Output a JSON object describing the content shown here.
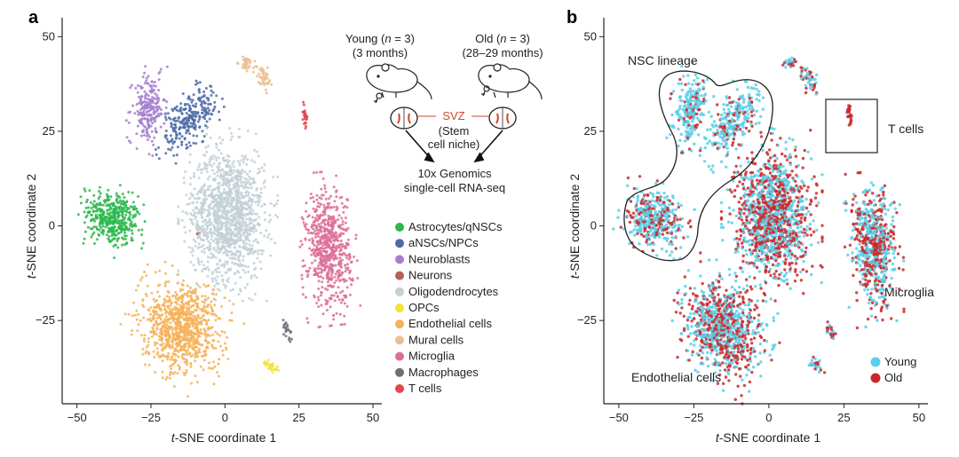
{
  "chart_data": [
    {
      "panel": "a",
      "type": "scatter",
      "xlabel_prefix": "t",
      "xlabel": "-SNE coordinate 1",
      "ylabel_prefix": "t",
      "ylabel": "-SNE coordinate 2",
      "xlim": [
        -55,
        53
      ],
      "ylim": [
        -47,
        55
      ],
      "xticks": [
        -50,
        -25,
        0,
        25,
        50
      ],
      "yticks": [
        -25,
        0,
        25,
        50
      ],
      "xtick_labels": [
        "−50",
        "−25",
        "0",
        "25",
        "50"
      ],
      "ytick_labels": [
        "−25",
        "0",
        "25",
        "50"
      ],
      "legend": [
        {
          "label": "Astrocytes/qNSCs",
          "color": "#2db84d"
        },
        {
          "label": "aNSCs/NPCs",
          "color": "#4e6aa8"
        },
        {
          "label": "Neuroblasts",
          "color": "#a47fcf"
        },
        {
          "label": "Neurons",
          "color": "#b5605e"
        },
        {
          "label": "Oligodendrocytes",
          "color": "#c3d0d6"
        },
        {
          "label": "OPCs",
          "color": "#f3e23a"
        },
        {
          "label": "Endothelial cells",
          "color": "#f6b35a"
        },
        {
          "label": "Mural cells",
          "color": "#e9c08e"
        },
        {
          "label": "Microglia",
          "color": "#dd6f96"
        },
        {
          "label": "Macrophages",
          "color": "#6f6f78"
        },
        {
          "label": "T cells",
          "color": "#e5444d"
        }
      ],
      "clusters": [
        {
          "type": "Astrocytes/qNSCs",
          "cx": -38,
          "cy": 2,
          "rx": 10,
          "ry": 8,
          "rot": -20,
          "n": 420
        },
        {
          "type": "aNSCs/NPCs",
          "cx": -12,
          "cy": 28,
          "rx": 6,
          "ry": 12,
          "rot": -45,
          "n": 260
        },
        {
          "type": "Neuroblasts",
          "cx": -26,
          "cy": 31,
          "rx": 6,
          "ry": 10,
          "rot": -10,
          "n": 220
        },
        {
          "type": "Neurons",
          "cx": -9,
          "cy": -2,
          "rx": 0.5,
          "ry": 1.3,
          "rot": 0,
          "n": 6
        },
        {
          "type": "Oligodendrocytes",
          "cx": 1,
          "cy": 3,
          "rx": 14,
          "ry": 19,
          "rot": 0,
          "n": 1300
        },
        {
          "type": "OPCs",
          "cx": 15.5,
          "cy": -37,
          "rx": 3,
          "ry": 1.5,
          "rot": -25,
          "n": 28
        },
        {
          "type": "Endothelial cells",
          "cx": -15,
          "cy": -27,
          "rx": 15,
          "ry": 12,
          "rot": -30,
          "n": 900
        },
        {
          "type": "Mural cells",
          "cx": 7,
          "cy": 43,
          "rx": 2.5,
          "ry": 1.8,
          "rot": 0,
          "n": 30
        },
        {
          "type": "Mural cells",
          "cx": 13,
          "cy": 39,
          "rx": 2.5,
          "ry": 4.5,
          "rot": 30,
          "n": 45
        },
        {
          "type": "Microglia",
          "cx": 35,
          "cy": -6,
          "rx": 8,
          "ry": 17,
          "rot": 5,
          "n": 650
        },
        {
          "type": "Macrophages",
          "cx": 21,
          "cy": -28,
          "rx": 1.3,
          "ry": 3.5,
          "rot": 25,
          "n": 22
        },
        {
          "type": "T cells",
          "cx": 27,
          "cy": 29,
          "rx": 0.8,
          "ry": 3.5,
          "rot": 10,
          "n": 25
        }
      ]
    },
    {
      "panel": "b",
      "type": "scatter",
      "xlabel_prefix": "t",
      "xlabel": "-SNE coordinate 1",
      "ylabel_prefix": "t",
      "ylabel": "-SNE coordinate 2",
      "xlim": [
        -55,
        53
      ],
      "ylim": [
        -47,
        55
      ],
      "xticks": [
        -50,
        -25,
        0,
        25,
        50
      ],
      "yticks": [
        -25,
        0,
        25,
        50
      ],
      "xtick_labels": [
        "−50",
        "−25",
        "0",
        "25",
        "50"
      ],
      "ytick_labels": [
        "−25",
        "0",
        "25",
        "50"
      ],
      "legend": [
        {
          "label": "Young",
          "color": "#5bcfe9"
        },
        {
          "label": "Old",
          "color": "#c9292b"
        }
      ],
      "annotations": {
        "nsc_lineage": "NSC lineage",
        "t_cells": "T cells",
        "microglia": "Microglia",
        "endothelial": "Endothelial cells"
      },
      "clusters": [
        {
          "cx": -38,
          "cy": 2,
          "rx": 10,
          "ry": 8,
          "rot": -20,
          "n": 420,
          "young_frac": 0.7
        },
        {
          "cx": -12,
          "cy": 28,
          "rx": 6,
          "ry": 12,
          "rot": -45,
          "n": 260,
          "young_frac": 0.75
        },
        {
          "cx": -26,
          "cy": 31,
          "rx": 6,
          "ry": 10,
          "rot": -10,
          "n": 220,
          "young_frac": 0.8
        },
        {
          "cx": 1,
          "cy": 3,
          "rx": 14,
          "ry": 19,
          "rot": 0,
          "n": 1300,
          "young_frac": 0.45
        },
        {
          "cx": -15,
          "cy": -27,
          "rx": 15,
          "ry": 12,
          "rot": -30,
          "n": 900,
          "young_frac": 0.55
        },
        {
          "cx": 7,
          "cy": 43,
          "rx": 2.5,
          "ry": 1.8,
          "rot": 0,
          "n": 30,
          "young_frac": 0.6
        },
        {
          "cx": 13,
          "cy": 39,
          "rx": 2.5,
          "ry": 4.5,
          "rot": 30,
          "n": 45,
          "young_frac": 0.5
        },
        {
          "cx": 35,
          "cy": -6,
          "rx": 8,
          "ry": 17,
          "rot": 5,
          "n": 650,
          "young_frac": 0.5
        },
        {
          "cx": 21,
          "cy": -28,
          "rx": 1.3,
          "ry": 3.5,
          "rot": 25,
          "n": 22,
          "young_frac": 0.5
        },
        {
          "cx": 27,
          "cy": 29,
          "rx": 0.8,
          "ry": 3.5,
          "rot": 10,
          "n": 25,
          "young_frac": 0.0
        },
        {
          "cx": 15.5,
          "cy": -37,
          "rx": 3,
          "ry": 1.5,
          "rot": -25,
          "n": 28,
          "young_frac": 0.5
        }
      ]
    }
  ],
  "schematic": {
    "young_label": "Young (",
    "young_n": "n",
    "young_eq": " = 3)",
    "young_age": "(3 months)",
    "old_label": "Old (",
    "old_n": "n",
    "old_eq": " = 3)",
    "old_age": "(28–29 months)",
    "svz": "SVZ",
    "stem_1": "(Stem",
    "stem_2": "cell niche)",
    "method_1": "10x Genomics",
    "method_2": "single-cell RNA-seq"
  },
  "panel_labels": {
    "a": "a",
    "b": "b"
  }
}
